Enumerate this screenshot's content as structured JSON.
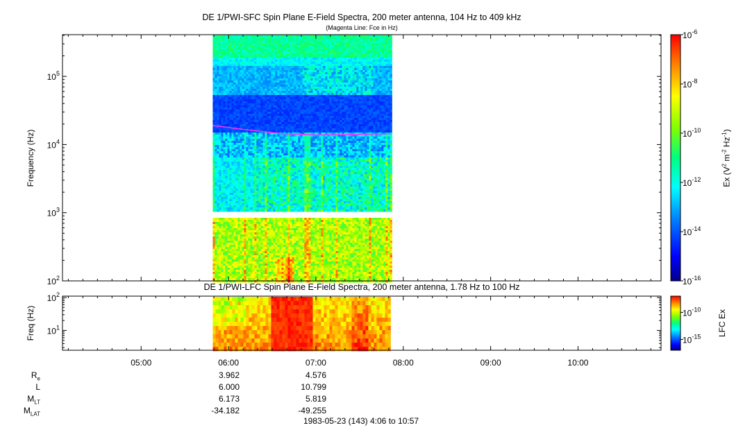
{
  "chart_data": [
    {
      "type": "heatmap",
      "title": "DE 1/PWI-SFC  Spin Plane E-Field Spectra, 200 meter antenna, 104 Hz to 409 kHz",
      "subtitle": "(Magenta Line: Fce in Hz)",
      "ylabel": "Frequency (Hz)",
      "yscale": "log",
      "ylim": [
        100,
        409000
      ],
      "yticks": [
        {
          "base": "10",
          "exp": "2",
          "value": 100
        },
        {
          "base": "10",
          "exp": "3",
          "value": 1000
        },
        {
          "base": "10",
          "exp": "4",
          "value": 10000
        },
        {
          "base": "10",
          "exp": "5",
          "value": 100000
        }
      ],
      "xlim_hours": [
        4.1,
        10.95
      ],
      "data_time_range_hours": [
        5.82,
        7.85
      ],
      "colorbar": {
        "label_prefix": "Ex (V",
        "label_sup1": "2",
        "label_mid": " m",
        "label_sup2": "-2",
        "label_mid2": " Hz",
        "label_sup3": "-1",
        "label_suffix": ")",
        "scale": "log",
        "range": [
          1e-16,
          1e-06
        ],
        "ticks": [
          {
            "base": "10",
            "exp": "-6",
            "value": -6
          },
          {
            "base": "10",
            "exp": "-8",
            "value": -8
          },
          {
            "base": "10",
            "exp": "-10",
            "value": -10
          },
          {
            "base": "10",
            "exp": "-12",
            "value": -12
          },
          {
            "base": "10",
            "exp": "-14",
            "value": -14
          },
          {
            "base": "10",
            "exp": "-16",
            "value": -16
          }
        ]
      },
      "fce_line": {
        "color": "#ff33ff",
        "time_hours": [
          5.82,
          6.2,
          6.6,
          7.0,
          7.4,
          7.85
        ],
        "freq_hz": [
          19000,
          16500,
          14500,
          13800,
          14000,
          14500
        ]
      }
    },
    {
      "type": "heatmap",
      "title": "DE 1/PWI-LFC  Spin Plane E-Field Spectra, 200 meter antenna, 1.78 Hz to 100 Hz",
      "ylabel": "Freq (Hz)",
      "yscale": "log",
      "ylim": [
        2.5,
        110
      ],
      "yticks": [
        {
          "base": "10",
          "exp": "1",
          "value": 10
        },
        {
          "base": "10",
          "exp": "2",
          "value": 100
        }
      ],
      "data_time_range_hours": [
        5.82,
        7.85
      ],
      "colorbar": {
        "label": "LFC Ex",
        "scale": "log",
        "range": [
          1e-17,
          1e-07
        ],
        "ticks": [
          {
            "base": "10",
            "exp": "-10",
            "value": -10
          },
          {
            "base": "10",
            "exp": "-15",
            "value": -15
          }
        ]
      }
    }
  ],
  "xaxis": {
    "ticks": [
      {
        "label": "05:00",
        "hours": 5
      },
      {
        "label": "06:00",
        "hours": 6
      },
      {
        "label": "07:00",
        "hours": 7
      },
      {
        "label": "08:00",
        "hours": 8
      },
      {
        "label": "09:00",
        "hours": 9
      },
      {
        "label": "10:00",
        "hours": 10
      }
    ]
  },
  "ephemeris": {
    "rows": [
      {
        "label": "R",
        "sub": "e",
        "v1": "3.962",
        "v2": "4.576"
      },
      {
        "label": "L",
        "sub": "",
        "v1": "6.000",
        "v2": "10.799"
      },
      {
        "label": "M",
        "sub": "LT",
        "v1": "6.173",
        "v2": "5.819"
      },
      {
        "label": "M",
        "sub": "LAT",
        "v1": "-34.182",
        "v2": "-49.255"
      }
    ],
    "footer": "1983-05-23 (143) 4:06 to 10:57"
  }
}
